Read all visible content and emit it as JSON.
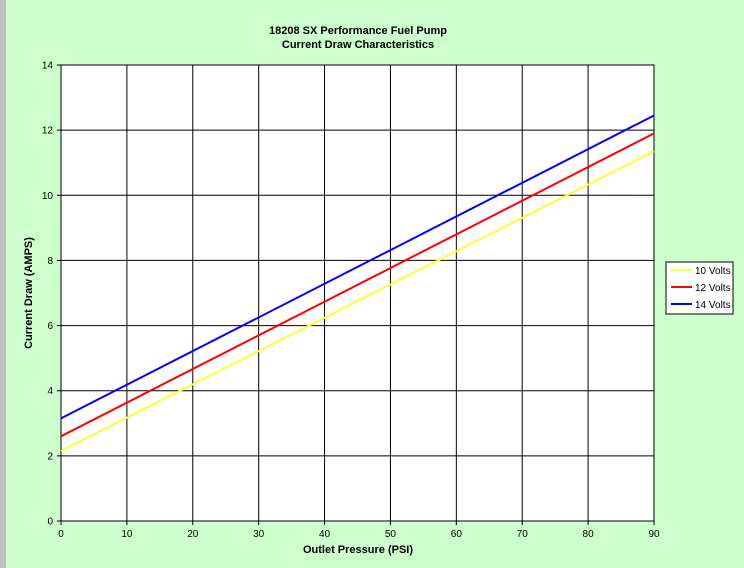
{
  "colors": {
    "page_background": "#ffffff",
    "chart_area": "#ccffcc",
    "left_stripe": "#c0c0c0",
    "plot_background": "#ffffff",
    "grid": "#000000",
    "series_10v": "#ffff33",
    "series_12v": "#ff0000",
    "series_14v": "#0000ff"
  },
  "chart_data": {
    "type": "line",
    "title": "18208 SX Performance Fuel Pump",
    "subtitle": "Current Draw Characteristics",
    "xlabel": "Outlet Pressure (PSI)",
    "ylabel": "Current Draw (AMPS)",
    "xlim": [
      0,
      90
    ],
    "ylim": [
      0,
      14
    ],
    "x_ticks": [
      0,
      10,
      20,
      30,
      40,
      50,
      60,
      70,
      80,
      90
    ],
    "y_ticks": [
      0,
      2,
      4,
      6,
      8,
      10,
      12,
      14
    ],
    "grid": true,
    "legend_position": "right",
    "series": [
      {
        "name": "10 Volts",
        "color": "#ffff33",
        "x": [
          0,
          90
        ],
        "y": [
          2.15,
          11.35
        ]
      },
      {
        "name": "12 Volts",
        "color": "#ff0000",
        "x": [
          0,
          90
        ],
        "y": [
          2.6,
          11.9
        ]
      },
      {
        "name": "14 Volts",
        "color": "#0000ff",
        "x": [
          0,
          90
        ],
        "y": [
          3.15,
          12.45
        ]
      }
    ]
  }
}
